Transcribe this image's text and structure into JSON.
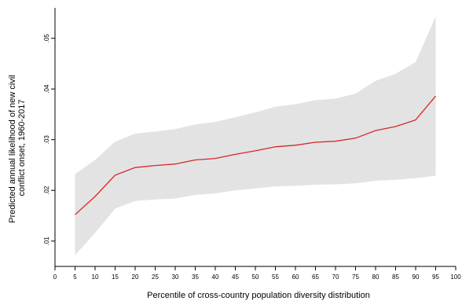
{
  "chart_data": {
    "type": "line",
    "title": "",
    "xlabel": "Percentile of cross-country population diversity distribution",
    "ylabel_lines": [
      "Predicted annual likelihood of new civil",
      "conflict onset, 1960-2017"
    ],
    "xlim": [
      0,
      100
    ],
    "ylim": [
      0.005,
      0.056
    ],
    "x_ticks": [
      0,
      5,
      10,
      15,
      20,
      25,
      30,
      35,
      40,
      45,
      50,
      55,
      60,
      65,
      70,
      75,
      80,
      85,
      90,
      95,
      100
    ],
    "x_tick_labels": [
      "0",
      "5",
      "10",
      "15",
      "20",
      "25",
      "30",
      "35",
      "40",
      "45",
      "50",
      "55",
      "60",
      "65",
      "70",
      "75",
      "80",
      "85",
      "90",
      "95",
      "100"
    ],
    "y_ticks": [
      0.01,
      0.02,
      0.03,
      0.04,
      0.05
    ],
    "y_tick_labels": [
      ".01",
      ".02",
      ".03",
      ".04",
      ".05"
    ],
    "grid": false,
    "x": [
      5,
      10,
      15,
      20,
      25,
      30,
      35,
      40,
      45,
      50,
      55,
      60,
      65,
      70,
      75,
      80,
      85,
      90,
      95
    ],
    "series": [
      {
        "role": "point-estimate",
        "color": "#d62728",
        "values": [
          0.0152,
          0.0188,
          0.023,
          0.0245,
          0.0249,
          0.0252,
          0.026,
          0.0263,
          0.0271,
          0.0278,
          0.0286,
          0.0289,
          0.0295,
          0.0297,
          0.0303,
          0.0318,
          0.0326,
          0.0339,
          0.0386
        ]
      }
    ],
    "confidence_band": {
      "color": "#e3e3e3",
      "lower": [
        0.0072,
        0.0116,
        0.0164,
        0.0179,
        0.0182,
        0.0184,
        0.0191,
        0.0194,
        0.02,
        0.0204,
        0.0208,
        0.0209,
        0.0211,
        0.0212,
        0.0214,
        0.0219,
        0.0221,
        0.0224,
        0.0229
      ],
      "upper": [
        0.0232,
        0.026,
        0.0296,
        0.0312,
        0.0316,
        0.0321,
        0.033,
        0.0335,
        0.0344,
        0.0354,
        0.0365,
        0.037,
        0.0378,
        0.0381,
        0.0391,
        0.0416,
        0.043,
        0.0453,
        0.0543
      ]
    }
  }
}
